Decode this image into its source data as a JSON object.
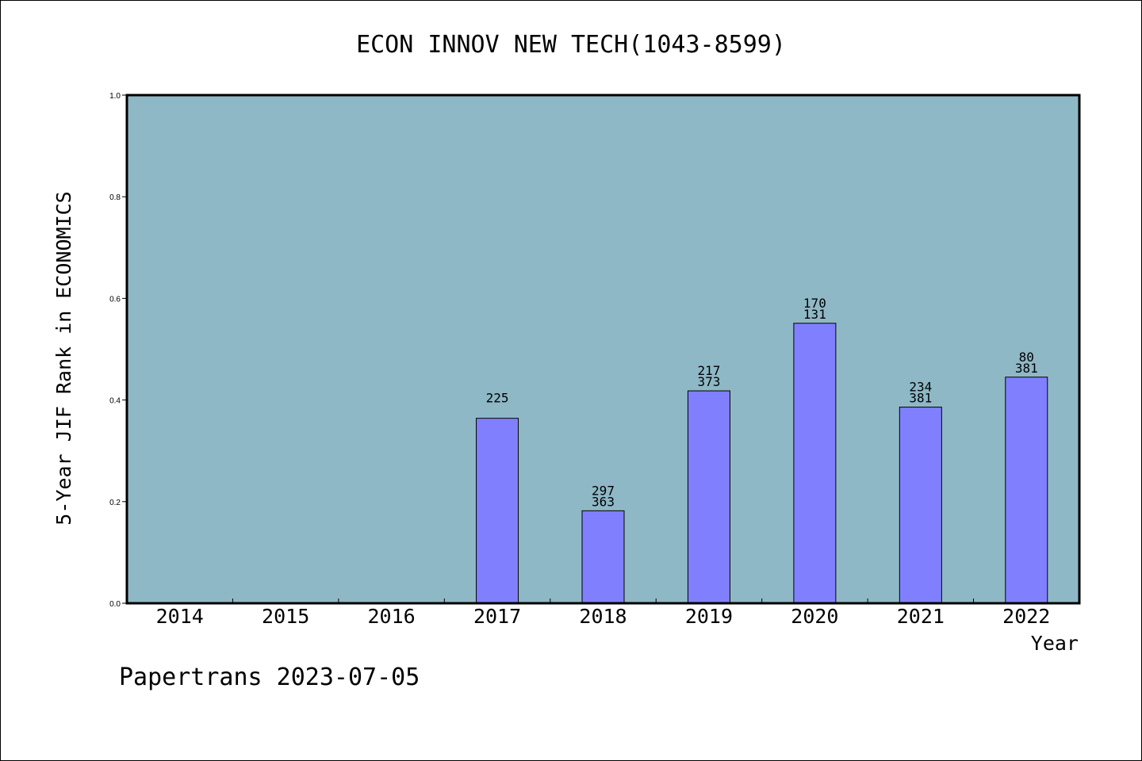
{
  "chart_data": {
    "type": "bar",
    "title": "ECON INNOV NEW TECH(1043-8599)",
    "ylabel": "5-Year JIF Rank in ECONOMICS",
    "xlabel": "Year",
    "categories": [
      "2014",
      "2015",
      "2016",
      "2017",
      "2018",
      "2019",
      "2020",
      "2021",
      "2022"
    ],
    "values": [
      0,
      0,
      0,
      0.364,
      0.182,
      0.418,
      0.551,
      0.386,
      0.445
    ],
    "bar_labels": [
      [],
      [],
      [],
      [
        "225"
      ],
      [
        "297",
        "363"
      ],
      [
        "217",
        "373"
      ],
      [
        "170",
        "131"
      ],
      [
        "234",
        "381"
      ],
      [
        "80",
        "381"
      ]
    ],
    "yticks": [
      "0.0",
      "0.2",
      "0.4",
      "0.6",
      "0.8",
      "1.0"
    ],
    "ylim": [
      0,
      1.0
    ],
    "grid": false,
    "colors": {
      "plot_background": "#8fb8c6",
      "bar_fill": "#8080ff",
      "bar_stroke": "#000000"
    }
  },
  "footer": "Papertrans 2023-07-05"
}
